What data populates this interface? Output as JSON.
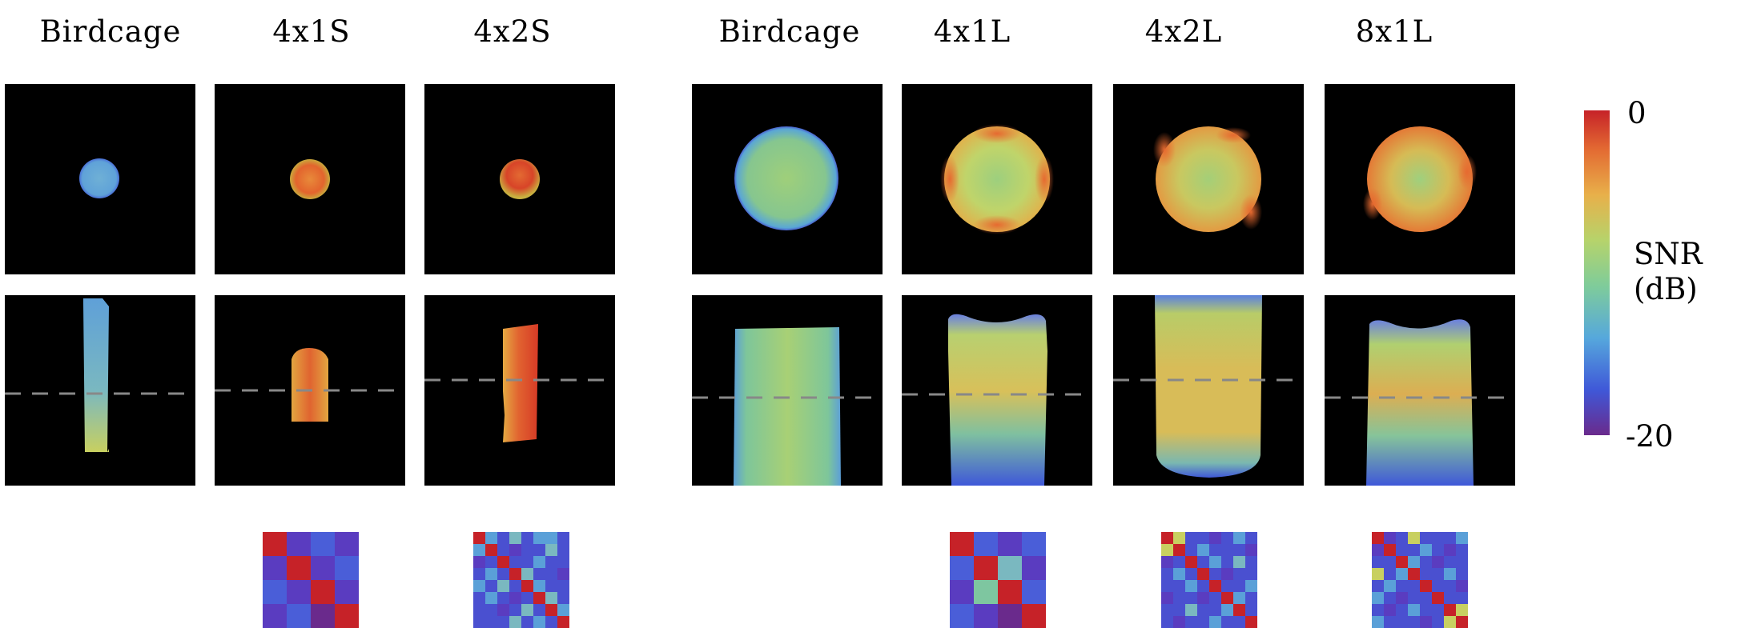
{
  "column_titles": [
    "Birdcage",
    "4x1S",
    "4x2S",
    "Birdcage",
    "4x1L",
    "4x2L",
    "8x1L"
  ],
  "colorbar": {
    "max_label": "0",
    "min_label": "-20",
    "title_line1": "SNR",
    "title_line2": "(dB)",
    "range_db": [
      -20,
      0
    ],
    "colors": [
      "#6a2a8c",
      "#3f58d8",
      "#56a8dc",
      "#7fcc9a",
      "#b6d36b",
      "#e8b04a",
      "#e36a32",
      "#c62228"
    ]
  },
  "coil_matrix_sizes": [
    null,
    4,
    8,
    null,
    4,
    8,
    8
  ]
}
